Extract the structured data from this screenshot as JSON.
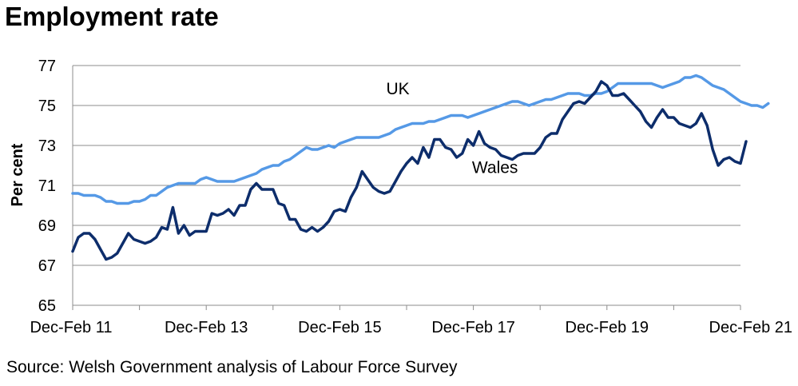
{
  "chart_data": {
    "type": "line",
    "title": "Employment rate",
    "ylabel": "Per cent",
    "xlabel": "",
    "ylim": [
      65,
      77
    ],
    "yticks": [
      65,
      67,
      69,
      71,
      73,
      75,
      77
    ],
    "x_tick_labels": [
      "Dec-Feb 11",
      "Dec-Feb 13",
      "Dec-Feb 15",
      "Dec-Feb 17",
      "Dec-Feb 19",
      "Dec-Feb 21"
    ],
    "x_tick_positions": [
      0,
      24,
      48,
      72,
      96,
      120
    ],
    "x_count": 121,
    "grid": "horizontal",
    "source": "Source: Welsh Government analysis of Labour Force Survey",
    "series": [
      {
        "name": "UK",
        "color": "#5599e6",
        "label_anchor": 75,
        "values": [
          70.6,
          70.6,
          70.5,
          70.5,
          70.5,
          70.4,
          70.2,
          70.2,
          70.1,
          70.1,
          70.1,
          70.2,
          70.2,
          70.3,
          70.5,
          70.5,
          70.7,
          70.9,
          71.0,
          71.1,
          71.1,
          71.1,
          71.1,
          71.3,
          71.4,
          71.3,
          71.2,
          71.2,
          71.2,
          71.2,
          71.3,
          71.4,
          71.5,
          71.6,
          71.8,
          71.9,
          72.0,
          72.0,
          72.2,
          72.3,
          72.5,
          72.7,
          72.9,
          72.8,
          72.8,
          72.9,
          73.0,
          72.9,
          73.1,
          73.2,
          73.3,
          73.4,
          73.4,
          73.4,
          73.4,
          73.4,
          73.5,
          73.6,
          73.8,
          73.9,
          74.0,
          74.1,
          74.1,
          74.1,
          74.2,
          74.2,
          74.3,
          74.4,
          74.5,
          74.5,
          74.5,
          74.4,
          74.5,
          74.6,
          74.7,
          74.8,
          74.9,
          75.0,
          75.1,
          75.2,
          75.2,
          75.1,
          75.0,
          75.1,
          75.2,
          75.3,
          75.3,
          75.4,
          75.5,
          75.6,
          75.6,
          75.6,
          75.5,
          75.5,
          75.6,
          75.6,
          75.7,
          75.9,
          76.1,
          76.1,
          76.1,
          76.1,
          76.1,
          76.1,
          76.1,
          76.0,
          75.9,
          76.0,
          76.1,
          76.2,
          76.4,
          76.4,
          76.5,
          76.4,
          76.2,
          76.0,
          75.9,
          75.8,
          75.6,
          75.4,
          75.2,
          75.1,
          75.0,
          75.0,
          74.9,
          75.1
        ]
      },
      {
        "name": "Wales",
        "color": "#0d2d6b",
        "label_anchor": 94,
        "values": [
          67.7,
          68.4,
          68.6,
          68.6,
          68.3,
          67.8,
          67.3,
          67.4,
          67.6,
          68.1,
          68.6,
          68.3,
          68.2,
          68.1,
          68.2,
          68.4,
          68.9,
          68.8,
          69.9,
          68.6,
          69.0,
          68.5,
          68.7,
          68.7,
          68.7,
          69.6,
          69.5,
          69.6,
          69.8,
          69.5,
          70.0,
          70.0,
          70.8,
          71.1,
          70.8,
          70.8,
          70.8,
          70.1,
          70.0,
          69.3,
          69.3,
          68.8,
          68.7,
          68.9,
          68.7,
          68.9,
          69.2,
          69.7,
          69.8,
          69.7,
          70.4,
          70.9,
          71.7,
          71.3,
          70.9,
          70.7,
          70.6,
          70.7,
          71.2,
          71.7,
          72.1,
          72.4,
          72.1,
          72.9,
          72.4,
          73.3,
          73.3,
          72.9,
          72.8,
          72.4,
          72.6,
          73.3,
          73.0,
          73.7,
          73.1,
          72.9,
          72.8,
          72.5,
          72.4,
          72.3,
          72.5,
          72.6,
          72.6,
          72.6,
          72.9,
          73.4,
          73.6,
          73.6,
          74.3,
          74.7,
          75.1,
          75.2,
          75.1,
          75.4,
          75.7,
          76.2,
          76.0,
          75.5,
          75.5,
          75.6,
          75.3,
          75.0,
          74.7,
          74.2,
          73.9,
          74.4,
          74.8,
          74.4,
          74.4,
          74.1,
          74.0,
          73.9,
          74.1,
          74.6,
          74.0,
          72.8,
          72.0,
          72.3,
          72.4,
          72.2,
          72.1,
          73.2
        ]
      }
    ]
  }
}
